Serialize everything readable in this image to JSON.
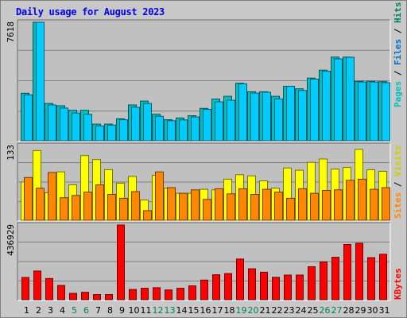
{
  "title": "Daily usage for August 2023",
  "colors": {
    "background": "#c8c8c8",
    "panel": "#c0c0c0",
    "pages": "#00bfbf",
    "files": "#00ccff",
    "visits": "#ffff00",
    "sites": "#ff8800",
    "kbytes": "#ff0000",
    "weekday": "#000000",
    "weekend": "#00805a",
    "title": "#0000ee"
  },
  "legend": {
    "top": [
      {
        "text": "Pages",
        "color": "#00bfbf"
      },
      {
        "text": " / ",
        "color": "#000000"
      },
      {
        "text": "Files",
        "color": "#0070cc"
      },
      {
        "text": " / ",
        "color": "#000000"
      },
      {
        "text": "Hits",
        "color": "#00805a"
      }
    ],
    "mid": [
      {
        "text": "Sites",
        "color": "#ff8800"
      },
      {
        "text": " / ",
        "color": "#000000"
      },
      {
        "text": "Visits",
        "color": "#cccc00"
      }
    ],
    "bottom": [
      {
        "text": "KBytes",
        "color": "#ff0000"
      }
    ]
  },
  "chart_data": {
    "type": "bar",
    "title": "Daily usage for August 2023",
    "categories": [
      "1",
      "2",
      "3",
      "4",
      "5",
      "6",
      "7",
      "8",
      "9",
      "10",
      "11",
      "12",
      "13",
      "14",
      "15",
      "16",
      "17",
      "18",
      "19",
      "20",
      "21",
      "22",
      "23",
      "24",
      "25",
      "26",
      "27",
      "28",
      "29",
      "30",
      "31"
    ],
    "weekend_days": [
      "5",
      "6",
      "12",
      "13",
      "19",
      "20",
      "26",
      "27"
    ],
    "panels": [
      {
        "name": "hits_files",
        "max_label": "7618",
        "ylim": [
          0,
          7618
        ],
        "series": [
          {
            "name": "Hits",
            "color": "#00bfbf",
            "values": [
              3050,
              7618,
              2400,
              2250,
              1960,
              1960,
              1070,
              1070,
              1410,
              2300,
              2550,
              1700,
              1350,
              1460,
              1610,
              2080,
              2680,
              2860,
              3700,
              3150,
              3150,
              2860,
              3500,
              3340,
              4030,
              4540,
              5380,
              5380,
              3820,
              3820,
              3800
            ]
          },
          {
            "name": "Files",
            "color": "#00ccff",
            "values": [
              2950,
              7618,
              2300,
              2100,
              1780,
              1700,
              950,
              1000,
              1350,
              2150,
              2400,
              1570,
              1290,
              1340,
              1530,
              2020,
              2500,
              2600,
              3660,
              3070,
              3120,
              2690,
              3500,
              3230,
              3960,
              4470,
              5260,
              5370,
              3780,
              3780,
              3730
            ]
          }
        ]
      },
      {
        "name": "visits_sites",
        "max_label": "133",
        "ylim": [
          0,
          133
        ],
        "series": [
          {
            "name": "Visits",
            "color": "#ffff00",
            "values": [
              68,
              124,
              49,
              86,
              63,
              115,
              108,
              90,
              66,
              78,
              36,
              80,
              57,
              48,
              48,
              55,
              54,
              73,
              81,
              79,
              70,
              57,
              93,
              89,
              103,
              109,
              91,
              94,
              126,
              90,
              87
            ]
          },
          {
            "name": "Sites",
            "color": "#ff8800",
            "values": [
              76,
              57,
              85,
              40,
              44,
              50,
              63,
              46,
              39,
              51,
              17,
              86,
              58,
              48,
              54,
              37,
              56,
              47,
              56,
              46,
              55,
              50,
              39,
              56,
              48,
              53,
              54,
              71,
              73,
              55,
              58
            ]
          }
        ]
      },
      {
        "name": "kbytes",
        "max_label": "436929",
        "ylim": [
          0,
          436929
        ],
        "series": [
          {
            "name": "KBytes",
            "color": "#ff0000",
            "values": [
              130000,
              168000,
              124000,
              83000,
              37000,
              43000,
              30000,
              30000,
              436929,
              60000,
              67000,
              70000,
              57000,
              67000,
              81000,
              115000,
              146000,
              153000,
              238000,
              181000,
              161000,
              131000,
              144000,
              144000,
              193000,
              221000,
              248000,
              323000,
              330000,
              246000,
              266000
            ]
          }
        ]
      }
    ]
  }
}
